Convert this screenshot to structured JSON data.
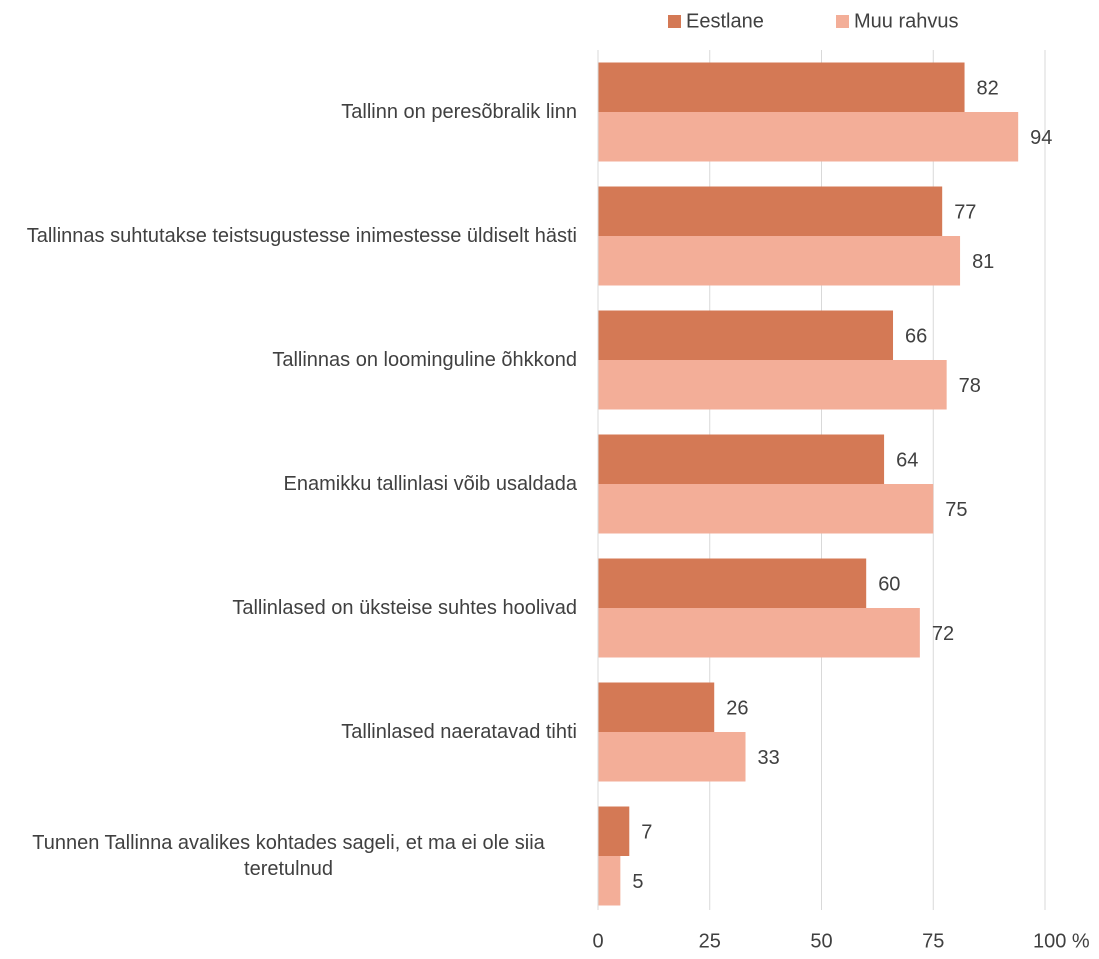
{
  "chart_data": {
    "type": "bar",
    "orientation": "horizontal",
    "categories": [
      "Tallinn on peresõbralik linn",
      "Tallinnas suhtutakse teistsugustesse inimestesse üldiselt hästi",
      "Tallinnas on loominguline õhkkond",
      "Enamikku tallinlasi võib usaldada",
      "Tallinlased on üksteise suhtes hoolivad",
      "Tallinlased naeratavad tihti",
      "Tunnen Tallinna avalikes kohtades sageli, et ma ei ole siia teretulnud"
    ],
    "series": [
      {
        "name": "Eestlane",
        "color": "#d47955",
        "values": [
          82,
          77,
          66,
          64,
          60,
          26,
          7
        ]
      },
      {
        "name": "Muu rahvus",
        "color": "#f3ae98",
        "values": [
          94,
          81,
          78,
          75,
          72,
          33,
          5
        ]
      }
    ],
    "xlim": [
      0,
      100
    ],
    "xticks": [
      0,
      25,
      50,
      75,
      {
        "value": 100,
        "label": "100 %"
      }
    ],
    "grid": true,
    "legend": "top"
  }
}
